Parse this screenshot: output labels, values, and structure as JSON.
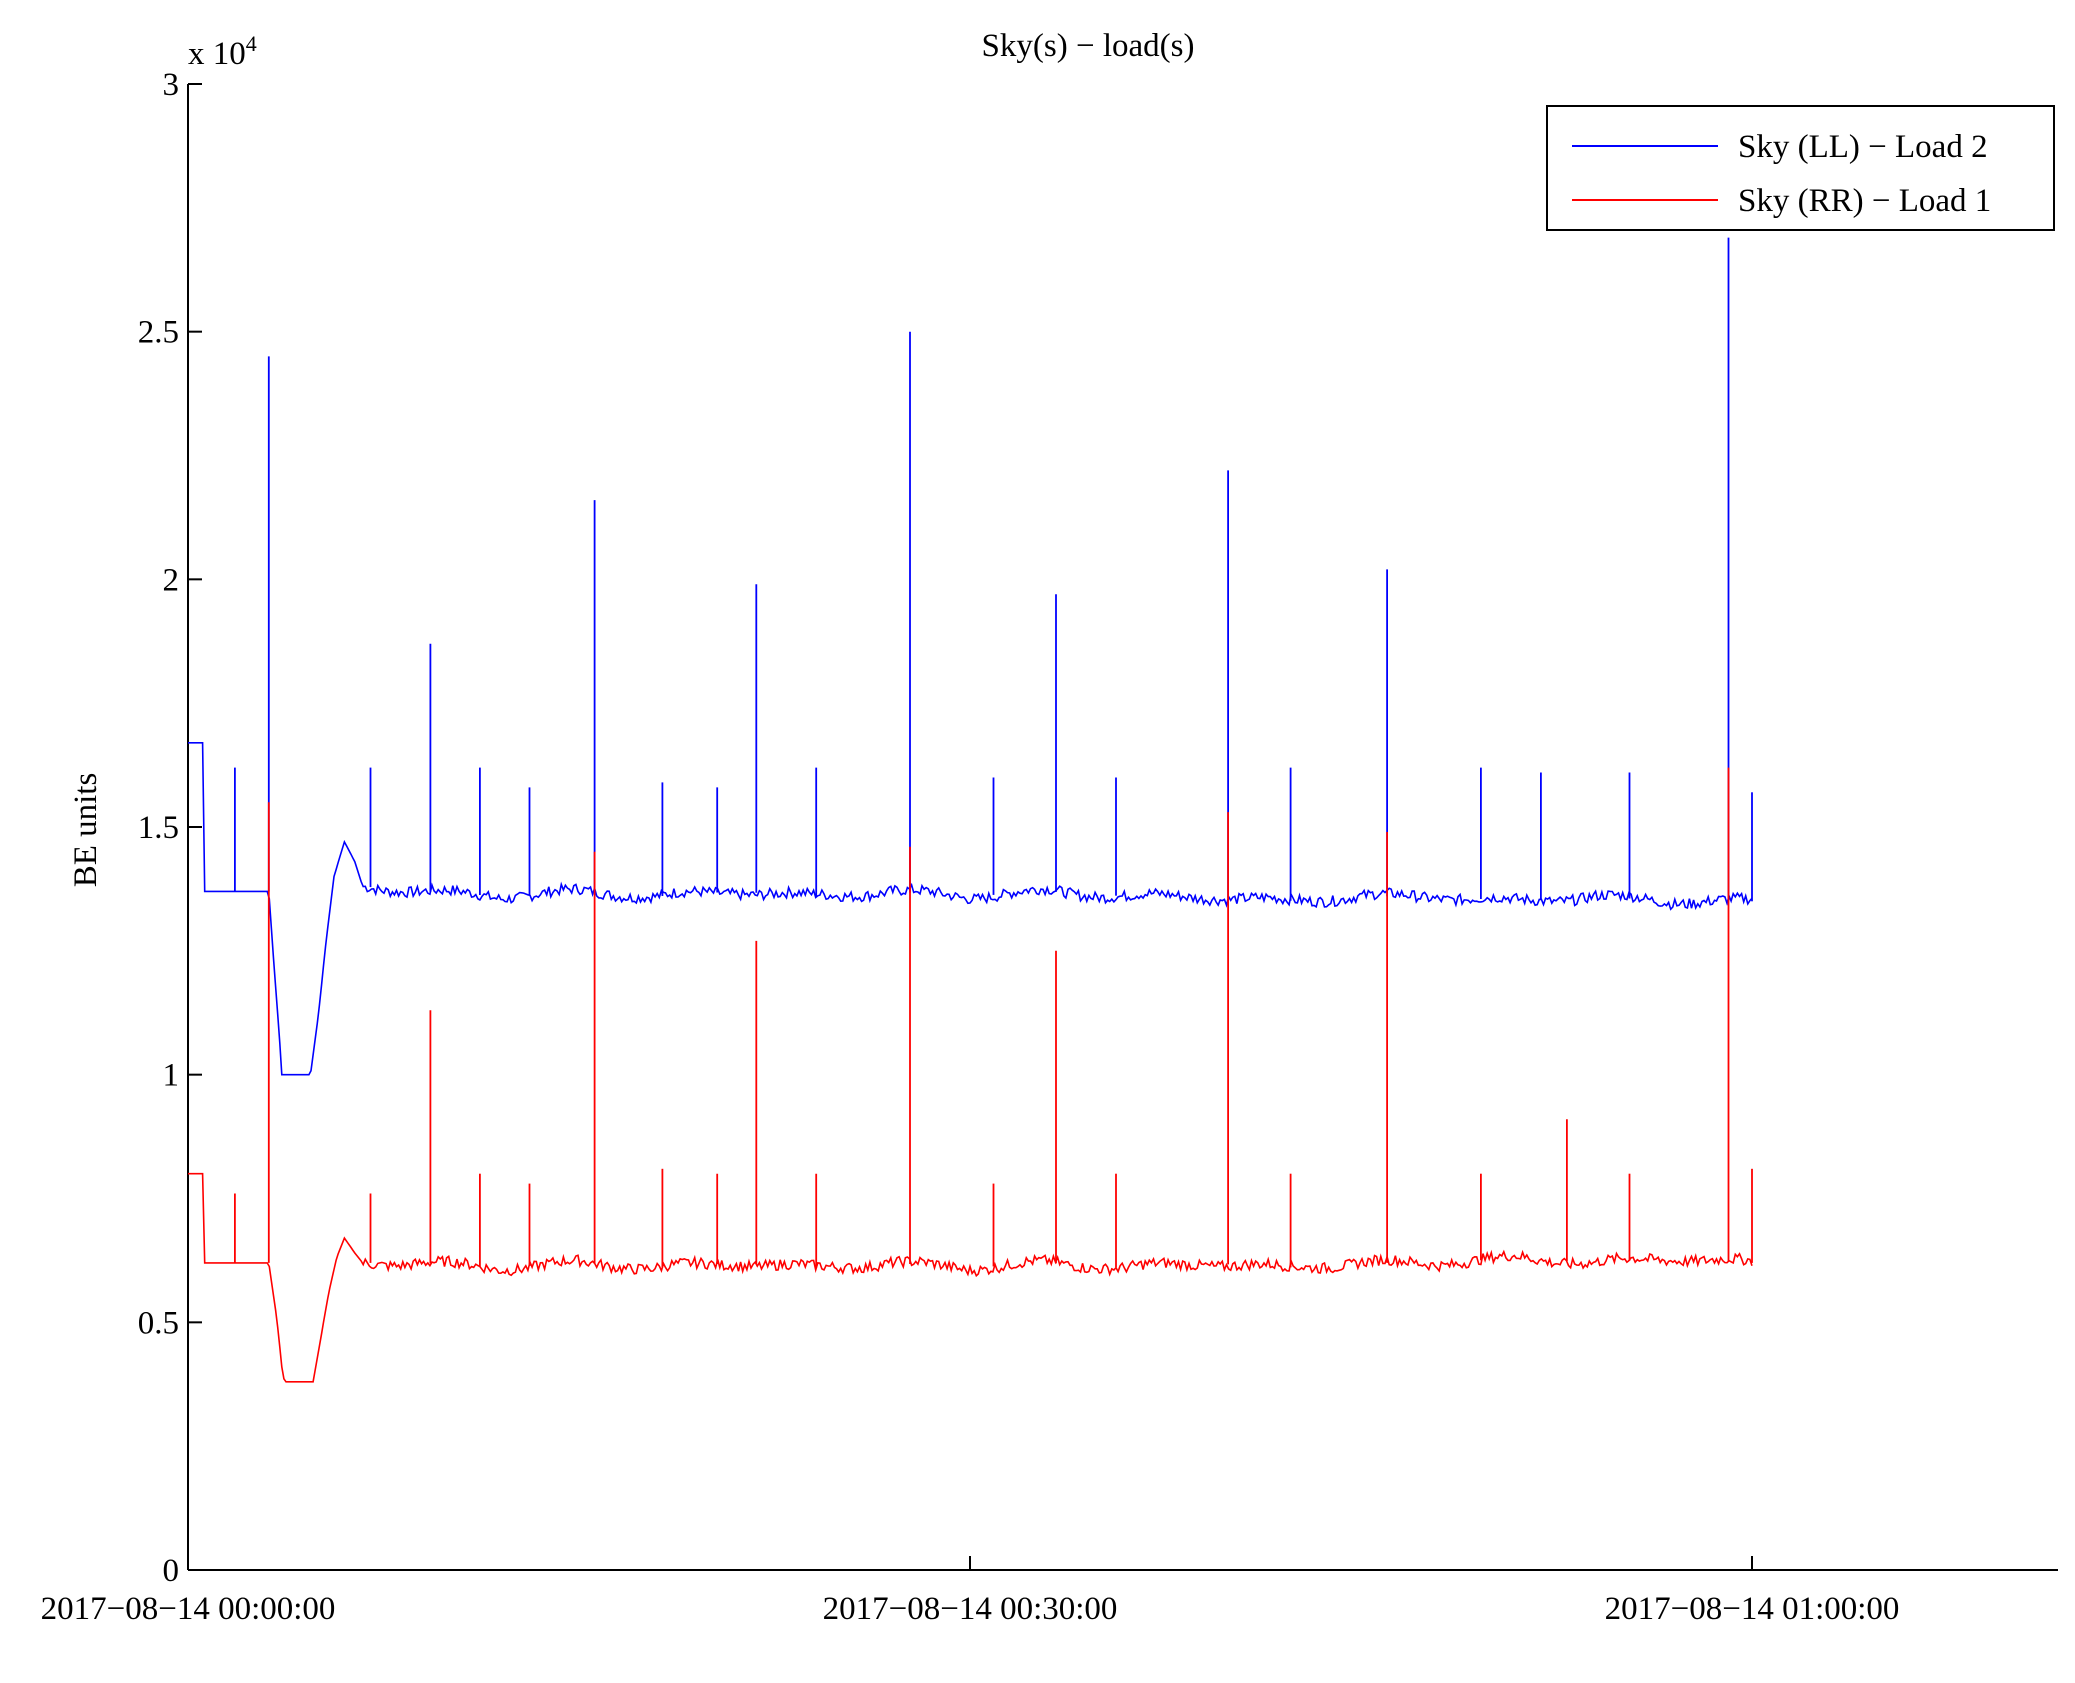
{
  "chart_data": {
    "type": "line",
    "title": "Sky(s) − load(s)",
    "ylabel": "BE units",
    "xlabel": "",
    "y_multiplier": "x 10",
    "y_multiplier_exponent": "4",
    "ylim": [
      0,
      30000
    ],
    "xlim_minutes": [
      0,
      72
    ],
    "yticks": [
      0,
      5000,
      10000,
      15000,
      20000,
      25000,
      30000
    ],
    "ytick_labels": [
      "0",
      "0.5",
      "1",
      "1.5",
      "2",
      "2.5",
      "3"
    ],
    "xticks": [
      0,
      30,
      60
    ],
    "xtick_labels": [
      "2017−08−14 00:00:00",
      "2017−08−14 00:30:00",
      "2017−08−14 01:00:00"
    ],
    "legend_position": "top-right",
    "grid": false,
    "series": [
      {
        "name": "Sky (LL) − Load 2",
        "color": "#0000ff",
        "baseline": [
          [
            0,
            16700
          ],
          [
            0.6,
            16700
          ],
          [
            0.6,
            13700
          ],
          [
            3.1,
            13700
          ],
          [
            3.3,
            12200
          ],
          [
            3.5,
            10800
          ],
          [
            3.6,
            10000
          ],
          [
            4.7,
            10000
          ],
          [
            5.0,
            11200
          ],
          [
            5.3,
            12700
          ],
          [
            5.6,
            14000
          ],
          [
            6.0,
            14700
          ],
          [
            6.4,
            14300
          ],
          [
            6.7,
            13800
          ],
          [
            9,
            13700
          ],
          [
            12,
            13600
          ],
          [
            15,
            13700
          ],
          [
            18,
            13600
          ],
          [
            21,
            13700
          ],
          [
            24,
            13600
          ],
          [
            27,
            13700
          ],
          [
            30,
            13600
          ],
          [
            33,
            13700
          ],
          [
            36,
            13600
          ],
          [
            39,
            13600
          ],
          [
            42,
            13500
          ],
          [
            45,
            13600
          ],
          [
            48,
            13600
          ],
          [
            51,
            13500
          ],
          [
            54,
            13600
          ],
          [
            57,
            13500
          ],
          [
            60,
            13500
          ]
        ],
        "spikes": [
          [
            1.8,
            16200
          ],
          [
            3.1,
            24500
          ],
          [
            7.0,
            16200
          ],
          [
            9.3,
            18700
          ],
          [
            11.2,
            16200
          ],
          [
            13.1,
            15800
          ],
          [
            15.6,
            21600
          ],
          [
            18.2,
            15900
          ],
          [
            20.3,
            15800
          ],
          [
            21.8,
            19900
          ],
          [
            24.1,
            16200
          ],
          [
            27.7,
            25000
          ],
          [
            30.9,
            16000
          ],
          [
            33.3,
            19700
          ],
          [
            35.6,
            16000
          ],
          [
            39.9,
            22200
          ],
          [
            42.3,
            16200
          ],
          [
            46.0,
            20200
          ],
          [
            49.6,
            16200
          ],
          [
            51.9,
            16100
          ],
          [
            55.3,
            16100
          ],
          [
            59.1,
            26900
          ],
          [
            60.0,
            15700
          ]
        ]
      },
      {
        "name": "Sky (RR) − Load 1",
        "color": "#ff0000",
        "baseline": [
          [
            0,
            8000
          ],
          [
            0.6,
            8000
          ],
          [
            0.6,
            6200
          ],
          [
            3.1,
            6200
          ],
          [
            3.4,
            5100
          ],
          [
            3.6,
            4100
          ],
          [
            3.7,
            3800
          ],
          [
            4.8,
            3800
          ],
          [
            5.1,
            4700
          ],
          [
            5.4,
            5600
          ],
          [
            5.7,
            6300
          ],
          [
            6.0,
            6700
          ],
          [
            6.4,
            6400
          ],
          [
            6.7,
            6200
          ],
          [
            9,
            6200
          ],
          [
            12,
            6100
          ],
          [
            15,
            6200
          ],
          [
            18,
            6100
          ],
          [
            21,
            6200
          ],
          [
            24,
            6100
          ],
          [
            27,
            6200
          ],
          [
            30,
            6100
          ],
          [
            33,
            6200
          ],
          [
            36,
            6100
          ],
          [
            39,
            6200
          ],
          [
            42,
            6100
          ],
          [
            45,
            6200
          ],
          [
            48,
            6200
          ],
          [
            51,
            6300
          ],
          [
            54,
            6200
          ],
          [
            57,
            6300
          ],
          [
            60,
            6200
          ]
        ],
        "spikes": [
          [
            1.8,
            7600
          ],
          [
            3.1,
            15500
          ],
          [
            7.0,
            7600
          ],
          [
            9.3,
            11300
          ],
          [
            11.2,
            8000
          ],
          [
            13.1,
            7800
          ],
          [
            15.6,
            14500
          ],
          [
            18.2,
            8100
          ],
          [
            20.3,
            8000
          ],
          [
            21.8,
            12700
          ],
          [
            24.1,
            8000
          ],
          [
            27.7,
            14600
          ],
          [
            30.9,
            7800
          ],
          [
            33.3,
            12500
          ],
          [
            35.6,
            8000
          ],
          [
            39.9,
            15300
          ],
          [
            42.3,
            8000
          ],
          [
            46.0,
            14900
          ],
          [
            49.6,
            8000
          ],
          [
            52.9,
            9100
          ],
          [
            55.3,
            8000
          ],
          [
            59.1,
            16200
          ],
          [
            60.0,
            8100
          ]
        ]
      }
    ]
  }
}
